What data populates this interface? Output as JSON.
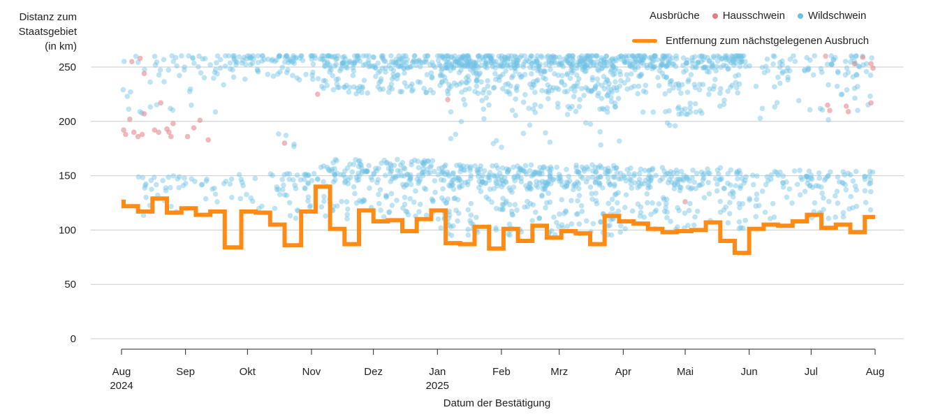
{
  "chart_data": {
    "type": "scatter",
    "ylabel_lines": [
      "Distanz zum",
      "Staatsgebiet",
      "(in km)"
    ],
    "xlabel": "Datum der Bestätigung",
    "ylim": [
      0,
      260
    ],
    "yticks": [
      0,
      50,
      100,
      150,
      200,
      250
    ],
    "xticks": [
      {
        "date": "2024-08-01",
        "label": "Aug",
        "year": "2024"
      },
      {
        "date": "2024-09-01",
        "label": "Sep",
        "year": ""
      },
      {
        "date": "2024-10-01",
        "label": "Okt",
        "year": ""
      },
      {
        "date": "2024-11-01",
        "label": "Nov",
        "year": ""
      },
      {
        "date": "2024-12-01",
        "label": "Dez",
        "year": ""
      },
      {
        "date": "2025-01-01",
        "label": "Jan",
        "year": "2025"
      },
      {
        "date": "2025-02-01",
        "label": "Feb",
        "year": ""
      },
      {
        "date": "2025-03-01",
        "label": "Mrz",
        "year": ""
      },
      {
        "date": "2025-04-01",
        "label": "Apr",
        "year": ""
      },
      {
        "date": "2025-05-01",
        "label": "Mai",
        "year": ""
      },
      {
        "date": "2025-06-01",
        "label": "Jun",
        "year": ""
      },
      {
        "date": "2025-07-01",
        "label": "Jul",
        "year": ""
      },
      {
        "date": "2025-08-01",
        "label": "Aug",
        "year": ""
      }
    ],
    "xlim": [
      "2024-08-01",
      "2025-08-01"
    ],
    "grid": true,
    "legend": {
      "title": "Ausbrüche",
      "placement": "top-right",
      "items": [
        {
          "name": "Hausschwein",
          "color": "#e07d85"
        },
        {
          "name": "Wildschwein",
          "color": "#6ec1e4"
        }
      ],
      "line_label": "Entfernung zum nächstgelegenen Ausbruch",
      "line_color": "#ff8b14"
    },
    "series": [
      {
        "name": "Entfernung zum nächstgelegenen Ausbruch",
        "type": "step-line",
        "color": "#ff8b14",
        "points": [
          [
            "2024-08-01",
            126
          ],
          [
            "2024-08-02",
            122
          ],
          [
            "2024-08-09",
            117
          ],
          [
            "2024-08-16",
            129
          ],
          [
            "2024-08-23",
            116
          ],
          [
            "2024-08-30",
            120
          ],
          [
            "2024-09-06",
            114
          ],
          [
            "2024-09-13",
            117
          ],
          [
            "2024-09-20",
            84
          ],
          [
            "2024-09-28",
            117
          ],
          [
            "2024-10-05",
            116
          ],
          [
            "2024-10-12",
            105
          ],
          [
            "2024-10-19",
            86
          ],
          [
            "2024-10-27",
            117
          ],
          [
            "2024-11-03",
            140
          ],
          [
            "2024-11-10",
            101
          ],
          [
            "2024-11-17",
            87
          ],
          [
            "2024-11-24",
            118
          ],
          [
            "2024-12-01",
            108
          ],
          [
            "2024-12-08",
            109
          ],
          [
            "2024-12-15",
            99
          ],
          [
            "2024-12-22",
            110
          ],
          [
            "2024-12-29",
            118
          ],
          [
            "2025-01-05",
            88
          ],
          [
            "2025-01-12",
            87
          ],
          [
            "2025-01-19",
            103
          ],
          [
            "2025-01-26",
            83
          ],
          [
            "2025-02-02",
            101
          ],
          [
            "2025-02-09",
            90
          ],
          [
            "2025-02-16",
            104
          ],
          [
            "2025-02-23",
            93
          ],
          [
            "2025-03-02",
            99
          ],
          [
            "2025-03-09",
            97
          ],
          [
            "2025-03-16",
            87
          ],
          [
            "2025-03-23",
            113
          ],
          [
            "2025-03-30",
            108
          ],
          [
            "2025-04-06",
            106
          ],
          [
            "2025-04-13",
            101
          ],
          [
            "2025-04-20",
            98
          ],
          [
            "2025-04-27",
            99
          ],
          [
            "2025-05-04",
            100
          ],
          [
            "2025-05-11",
            107
          ],
          [
            "2025-05-18",
            90
          ],
          [
            "2025-05-25",
            79
          ],
          [
            "2025-06-01",
            101
          ],
          [
            "2025-06-08",
            105
          ],
          [
            "2025-06-15",
            104
          ],
          [
            "2025-06-22",
            108
          ],
          [
            "2025-06-29",
            114
          ],
          [
            "2025-07-06",
            102
          ],
          [
            "2025-07-13",
            105
          ],
          [
            "2025-07-20",
            98
          ],
          [
            "2025-07-27",
            112
          ],
          [
            "2025-08-01",
            112
          ]
        ]
      },
      {
        "name": "Hausschwein",
        "type": "scatter",
        "color": "#e07d85",
        "points": [
          [
            "2024-08-02",
            192
          ],
          [
            "2024-08-03",
            188
          ],
          [
            "2024-08-05",
            202
          ],
          [
            "2024-08-07",
            190
          ],
          [
            "2024-08-09",
            186
          ],
          [
            "2024-08-11",
            188
          ],
          [
            "2024-08-12",
            207
          ],
          [
            "2024-08-06",
            255
          ],
          [
            "2024-08-10",
            258
          ],
          [
            "2024-08-12",
            244
          ],
          [
            "2024-08-17",
            192
          ],
          [
            "2024-08-19",
            190
          ],
          [
            "2024-08-20",
            217
          ],
          [
            "2024-08-23",
            193
          ],
          [
            "2024-08-24",
            190
          ],
          [
            "2024-08-25",
            186
          ],
          [
            "2024-08-26",
            198
          ],
          [
            "2024-09-02",
            186
          ],
          [
            "2024-09-05",
            194
          ],
          [
            "2024-09-08",
            201
          ],
          [
            "2024-09-12",
            183
          ],
          [
            "2024-10-19",
            180
          ],
          [
            "2024-11-04",
            225
          ],
          [
            "2025-01-06",
            220
          ],
          [
            "2025-05-01",
            126
          ],
          [
            "2025-07-08",
            260
          ],
          [
            "2025-07-09",
            215
          ],
          [
            "2025-07-10",
            210
          ],
          [
            "2025-07-18",
            214
          ],
          [
            "2025-07-19",
            209
          ],
          [
            "2025-07-22",
            253
          ],
          [
            "2025-07-26",
            259
          ],
          [
            "2025-07-30",
            253
          ],
          [
            "2025-07-31",
            249
          ],
          [
            "2025-07-30",
            217
          ]
        ]
      },
      {
        "name": "Wildschwein",
        "type": "scatter",
        "color": "#6ec1e4",
        "clusters": [
          {
            "from": "2024-08-01",
            "to": "2024-09-20",
            "y": [
              200,
              262
            ],
            "n": 55
          },
          {
            "from": "2024-08-05",
            "to": "2024-09-25",
            "y": [
              110,
              150
            ],
            "n": 45
          },
          {
            "from": "2024-09-20",
            "to": "2024-11-05",
            "y": [
              238,
              262
            ],
            "n": 90
          },
          {
            "from": "2024-09-25",
            "to": "2024-11-05",
            "y": [
              110,
              152
            ],
            "n": 55
          },
          {
            "from": "2024-10-10",
            "to": "2024-10-25",
            "y": [
              172,
              194
            ],
            "n": 4
          },
          {
            "from": "2024-11-05",
            "to": "2024-12-31",
            "y": [
              225,
              262
            ],
            "n": 200
          },
          {
            "from": "2024-11-05",
            "to": "2024-12-31",
            "y": [
              110,
              165
            ],
            "n": 190
          },
          {
            "from": "2025-01-01",
            "to": "2025-03-31",
            "y": [
              225,
              262
            ],
            "n": 460
          },
          {
            "from": "2025-01-01",
            "to": "2025-03-31",
            "y": [
              95,
              160
            ],
            "n": 400
          },
          {
            "from": "2025-01-05",
            "to": "2025-03-31",
            "y": [
              175,
              225
            ],
            "n": 60
          },
          {
            "from": "2025-04-01",
            "to": "2025-05-31",
            "y": [
              225,
              262
            ],
            "n": 230
          },
          {
            "from": "2025-04-01",
            "to": "2025-05-31",
            "y": [
              100,
              158
            ],
            "n": 180
          },
          {
            "from": "2025-04-01",
            "to": "2025-05-20",
            "y": [
              180,
              220
            ],
            "n": 25
          },
          {
            "from": "2025-06-01",
            "to": "2025-07-31",
            "y": [
              200,
              262
            ],
            "n": 90
          },
          {
            "from": "2025-06-01",
            "to": "2025-07-31",
            "y": [
              110,
              155
            ],
            "n": 110
          }
        ]
      }
    ]
  }
}
